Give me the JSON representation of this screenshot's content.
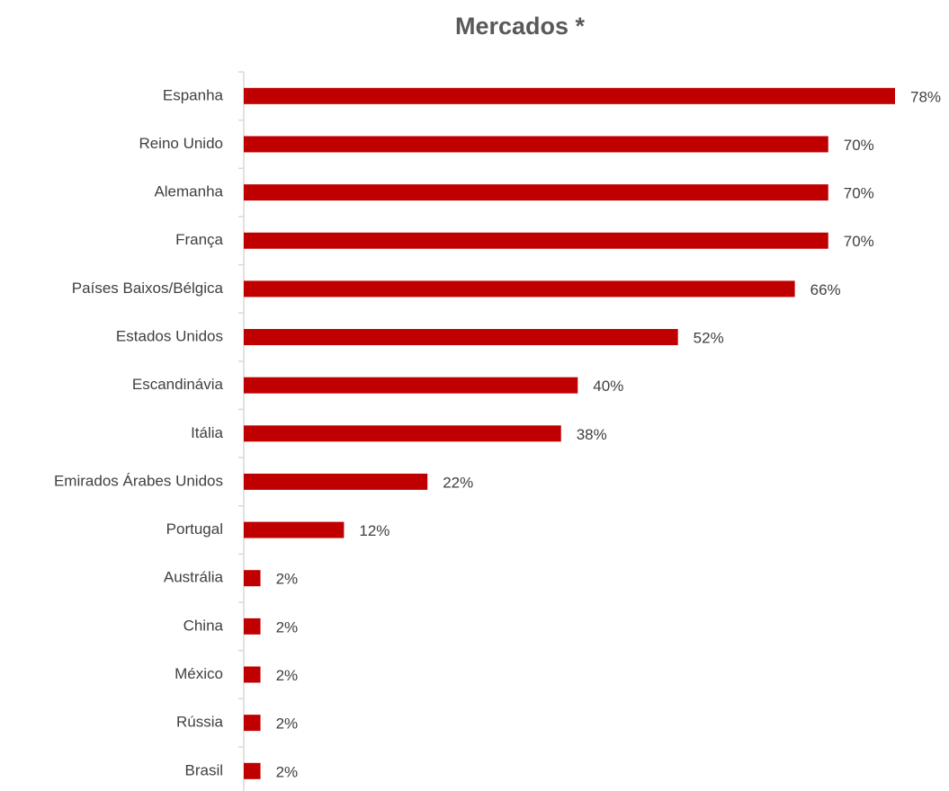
{
  "chart_data": {
    "type": "bar",
    "orientation": "horizontal",
    "title": "Mercados *",
    "categories": [
      "Espanha",
      "Reino Unido",
      "Alemanha",
      "França",
      "Países Baixos/Bélgica",
      "Estados Unidos",
      "Escandinávia",
      "Itália",
      "Emirados Árabes Unidos",
      "Portugal",
      "Austrália",
      "China",
      "México",
      "Rússia",
      "Brasil"
    ],
    "values": [
      78,
      70,
      70,
      70,
      66,
      52,
      40,
      38,
      22,
      12,
      2,
      2,
      2,
      2,
      2
    ],
    "value_labels": [
      "78%",
      "70%",
      "70%",
      "70%",
      "66%",
      "52%",
      "40%",
      "38%",
      "22%",
      "12%",
      "2%",
      "2%",
      "2%",
      "2%",
      "2%"
    ],
    "color": "#c00000"
  }
}
